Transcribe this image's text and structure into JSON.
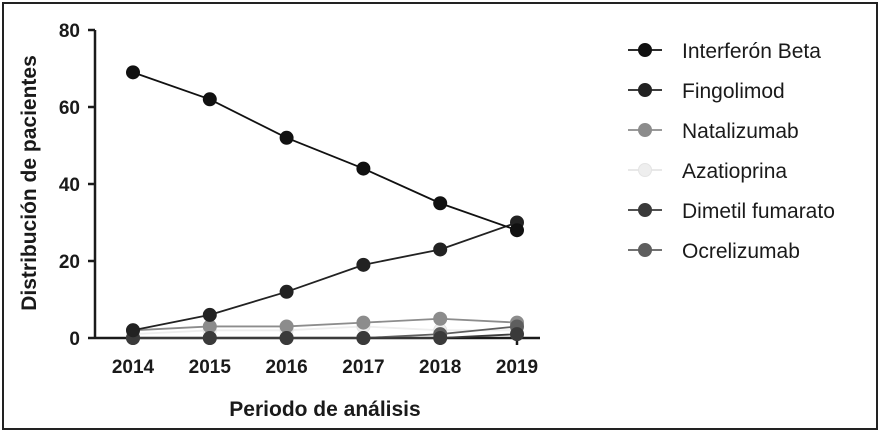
{
  "chart_data": {
    "type": "line",
    "xlabel": "Periodo de análisis",
    "ylabel": "Distribución de pacientes",
    "x": [
      2014,
      2015,
      2016,
      2017,
      2018,
      2019
    ],
    "x_tick_labels": [
      "2014",
      "2015",
      "2016",
      "2017",
      "2018",
      "2019"
    ],
    "ylim": [
      0,
      80
    ],
    "y_ticks": [
      0,
      20,
      40,
      60,
      80
    ],
    "y_tick_labels": [
      "0",
      "20",
      "40",
      "60",
      "80"
    ],
    "grid": false,
    "legend_position": "right",
    "series": [
      {
        "name": "Interferón Beta",
        "color": "#111111",
        "values": [
          69,
          62,
          52,
          44,
          35,
          28
        ]
      },
      {
        "name": "Fingolimod",
        "color": "#222222",
        "values": [
          2,
          6,
          12,
          19,
          23,
          30
        ]
      },
      {
        "name": "Natalizumab",
        "color": "#8c8c8c",
        "values": [
          2,
          3,
          3,
          4,
          5,
          4
        ]
      },
      {
        "name": "Azatioprina",
        "color": "#eeeeee",
        "values": [
          1,
          2,
          2,
          3,
          2,
          2
        ]
      },
      {
        "name": "Dimetil fumarato",
        "color": "#3a3a3a",
        "values": [
          0,
          0,
          0,
          0,
          0,
          1
        ]
      },
      {
        "name": "Ocrelizumab",
        "color": "#5e5e5e",
        "values": [
          0,
          0,
          0,
          0,
          1,
          3
        ]
      }
    ]
  }
}
